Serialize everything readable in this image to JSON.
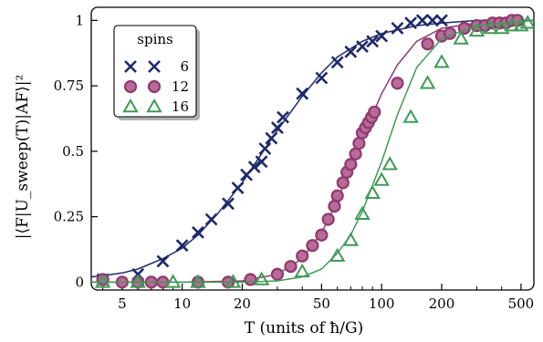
{
  "chart_data": {
    "type": "scatter",
    "title": "",
    "xlabel": "T (units of ħ/G)",
    "ylabel": "|⟨F|U_sweep(T)|AF⟩|²",
    "xscale": "log",
    "xlim": [
      3.5,
      580
    ],
    "ylim": [
      -0.03,
      1.05
    ],
    "x_ticks": [
      5,
      10,
      20,
      50,
      100,
      200,
      500
    ],
    "y_ticks": [
      0,
      0.25,
      0.5,
      0.75,
      1
    ],
    "y_tick_labels": [
      "0",
      "0.25",
      "0.5",
      "0.75",
      "1"
    ],
    "grid": false,
    "legend": {
      "title": "spins",
      "position": "top-left"
    },
    "series": [
      {
        "name": "6",
        "color": "#1f2a6b",
        "marker": "x",
        "points": [
          [
            4,
            0.01
          ],
          [
            6,
            0.03
          ],
          [
            8,
            0.08
          ],
          [
            10,
            0.14
          ],
          [
            12,
            0.19
          ],
          [
            14,
            0.24
          ],
          [
            17,
            0.3
          ],
          [
            19,
            0.36
          ],
          [
            21,
            0.41
          ],
          [
            23,
            0.44
          ],
          [
            25,
            0.46
          ],
          [
            26,
            0.51
          ],
          [
            28,
            0.55
          ],
          [
            30,
            0.59
          ],
          [
            32,
            0.63
          ],
          [
            40,
            0.72
          ],
          [
            50,
            0.78
          ],
          [
            60,
            0.84
          ],
          [
            70,
            0.88
          ],
          [
            80,
            0.9
          ],
          [
            90,
            0.92
          ],
          [
            100,
            0.94
          ],
          [
            120,
            0.97
          ],
          [
            140,
            0.99
          ],
          [
            160,
            1.0
          ],
          [
            180,
            1.0
          ],
          [
            200,
            1.0
          ]
        ],
        "fit": [
          [
            3.5,
            0.02
          ],
          [
            4,
            0.025
          ],
          [
            5,
            0.035
          ],
          [
            6,
            0.05
          ],
          [
            8,
            0.09
          ],
          [
            10,
            0.13
          ],
          [
            12,
            0.18
          ],
          [
            15,
            0.26
          ],
          [
            20,
            0.38
          ],
          [
            25,
            0.49
          ],
          [
            30,
            0.58
          ],
          [
            40,
            0.71
          ],
          [
            50,
            0.8
          ],
          [
            60,
            0.86
          ],
          [
            80,
            0.92
          ],
          [
            100,
            0.95
          ],
          [
            150,
            0.98
          ],
          [
            200,
            0.99
          ],
          [
            300,
            1.0
          ],
          [
            580,
            1.0
          ]
        ]
      },
      {
        "name": "12",
        "color": "#8e3a6e",
        "marker": "circle",
        "points": [
          [
            4,
            0.01
          ],
          [
            5,
            0.0
          ],
          [
            6,
            0.0
          ],
          [
            7,
            0.0
          ],
          [
            8,
            0.0
          ],
          [
            12,
            0.0
          ],
          [
            17,
            0.0
          ],
          [
            22,
            0.01
          ],
          [
            30,
            0.03
          ],
          [
            35,
            0.06
          ],
          [
            40,
            0.1
          ],
          [
            45,
            0.14
          ],
          [
            50,
            0.18
          ],
          [
            54,
            0.24
          ],
          [
            58,
            0.29
          ],
          [
            60,
            0.33
          ],
          [
            64,
            0.38
          ],
          [
            67,
            0.42
          ],
          [
            70,
            0.45
          ],
          [
            74,
            0.49
          ],
          [
            77,
            0.53
          ],
          [
            80,
            0.57
          ],
          [
            83,
            0.59
          ],
          [
            86,
            0.61
          ],
          [
            89,
            0.63
          ],
          [
            92,
            0.65
          ],
          [
            120,
            0.76
          ],
          [
            170,
            0.91
          ],
          [
            200,
            0.94
          ],
          [
            220,
            0.95
          ],
          [
            260,
            0.97
          ],
          [
            300,
            0.98
          ],
          [
            330,
            0.98
          ],
          [
            360,
            0.99
          ],
          [
            390,
            0.99
          ],
          [
            420,
            0.99
          ],
          [
            450,
            1.0
          ],
          [
            480,
            1.0
          ]
        ],
        "fit": [
          [
            3.5,
            0.0
          ],
          [
            10,
            0.0
          ],
          [
            20,
            0.005
          ],
          [
            30,
            0.03
          ],
          [
            40,
            0.09
          ],
          [
            50,
            0.19
          ],
          [
            60,
            0.31
          ],
          [
            70,
            0.44
          ],
          [
            80,
            0.55
          ],
          [
            100,
            0.72
          ],
          [
            120,
            0.83
          ],
          [
            150,
            0.92
          ],
          [
            200,
            0.97
          ],
          [
            300,
            0.99
          ],
          [
            580,
            1.0
          ]
        ]
      },
      {
        "name": "16",
        "color": "#3f9a55",
        "marker": "triangle",
        "points": [
          [
            4,
            0.0
          ],
          [
            6,
            0.0
          ],
          [
            9,
            0.0
          ],
          [
            12,
            0.0
          ],
          [
            18,
            0.0
          ],
          [
            25,
            0.01
          ],
          [
            40,
            0.04
          ],
          [
            60,
            0.1
          ],
          [
            70,
            0.16
          ],
          [
            80,
            0.26
          ],
          [
            90,
            0.34
          ],
          [
            100,
            0.39
          ],
          [
            110,
            0.45
          ],
          [
            140,
            0.63
          ],
          [
            170,
            0.76
          ],
          [
            200,
            0.84
          ],
          [
            250,
            0.93
          ],
          [
            300,
            0.96
          ],
          [
            350,
            0.97
          ],
          [
            400,
            0.97
          ],
          [
            450,
            0.98
          ],
          [
            500,
            0.98
          ],
          [
            540,
            0.99
          ]
        ],
        "fit": [
          [
            3.5,
            0.0
          ],
          [
            20,
            0.0
          ],
          [
            30,
            0.005
          ],
          [
            40,
            0.02
          ],
          [
            50,
            0.05
          ],
          [
            60,
            0.11
          ],
          [
            70,
            0.18
          ],
          [
            80,
            0.27
          ],
          [
            100,
            0.46
          ],
          [
            120,
            0.64
          ],
          [
            150,
            0.82
          ],
          [
            200,
            0.93
          ],
          [
            300,
            0.98
          ],
          [
            580,
            1.0
          ]
        ]
      }
    ]
  }
}
